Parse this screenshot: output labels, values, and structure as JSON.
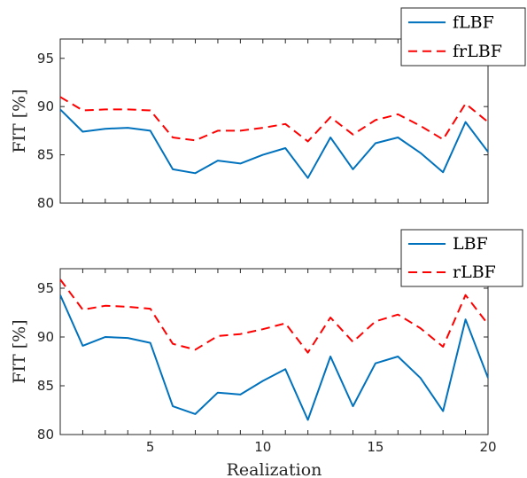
{
  "colors": {
    "series_solid": "#0072BD",
    "series_dashed": "#FF0000",
    "axis": "#262626"
  },
  "chart_data": [
    {
      "type": "line",
      "title": "",
      "xlabel": "",
      "ylabel": "FIT [%]",
      "xlim": [
        1,
        20
      ],
      "ylim": [
        80,
        97
      ],
      "yticks": [
        80,
        85,
        90,
        95
      ],
      "xticks": [
        5,
        10,
        15,
        20
      ],
      "show_xtick_labels": false,
      "grid": false,
      "legend_position": "top-right",
      "x": [
        1,
        2,
        3,
        4,
        5,
        6,
        7,
        8,
        9,
        10,
        11,
        12,
        13,
        14,
        15,
        16,
        17,
        18,
        19,
        20
      ],
      "series": [
        {
          "name": "fLBF",
          "style": "solid",
          "values": [
            89.7,
            87.4,
            87.7,
            87.8,
            87.5,
            83.5,
            83.1,
            84.4,
            84.1,
            85.0,
            85.7,
            82.6,
            86.8,
            83.5,
            86.2,
            86.8,
            85.2,
            83.2,
            88.4,
            85.3
          ]
        },
        {
          "name": "frLBF",
          "style": "dashed",
          "values": [
            91.0,
            89.6,
            89.7,
            89.7,
            89.6,
            86.8,
            86.5,
            87.5,
            87.5,
            87.8,
            88.2,
            86.4,
            88.9,
            87.1,
            88.6,
            89.2,
            88.0,
            86.6,
            90.3,
            88.4
          ]
        }
      ]
    },
    {
      "type": "line",
      "title": "",
      "xlabel": "Realization",
      "ylabel": "FIT [%]",
      "xlim": [
        1,
        20
      ],
      "ylim": [
        80,
        97
      ],
      "yticks": [
        80,
        85,
        90,
        95
      ],
      "xticks": [
        5,
        10,
        15,
        20
      ],
      "show_xtick_labels": true,
      "grid": false,
      "legend_position": "top-right",
      "x": [
        1,
        2,
        3,
        4,
        5,
        6,
        7,
        8,
        9,
        10,
        11,
        12,
        13,
        14,
        15,
        16,
        17,
        18,
        19,
        20
      ],
      "series": [
        {
          "name": "LBF",
          "style": "solid",
          "values": [
            94.3,
            89.1,
            90.0,
            89.9,
            89.4,
            82.9,
            82.1,
            84.3,
            84.1,
            85.5,
            86.7,
            81.5,
            88.0,
            82.9,
            87.3,
            88.0,
            85.8,
            82.4,
            91.8,
            85.8
          ]
        },
        {
          "name": "rLBF",
          "style": "dashed",
          "values": [
            95.9,
            92.8,
            93.2,
            93.1,
            92.9,
            89.3,
            88.7,
            90.1,
            90.3,
            90.8,
            91.4,
            88.4,
            92.0,
            89.5,
            91.6,
            92.3,
            90.9,
            89.0,
            94.3,
            91.3
          ]
        }
      ]
    }
  ]
}
